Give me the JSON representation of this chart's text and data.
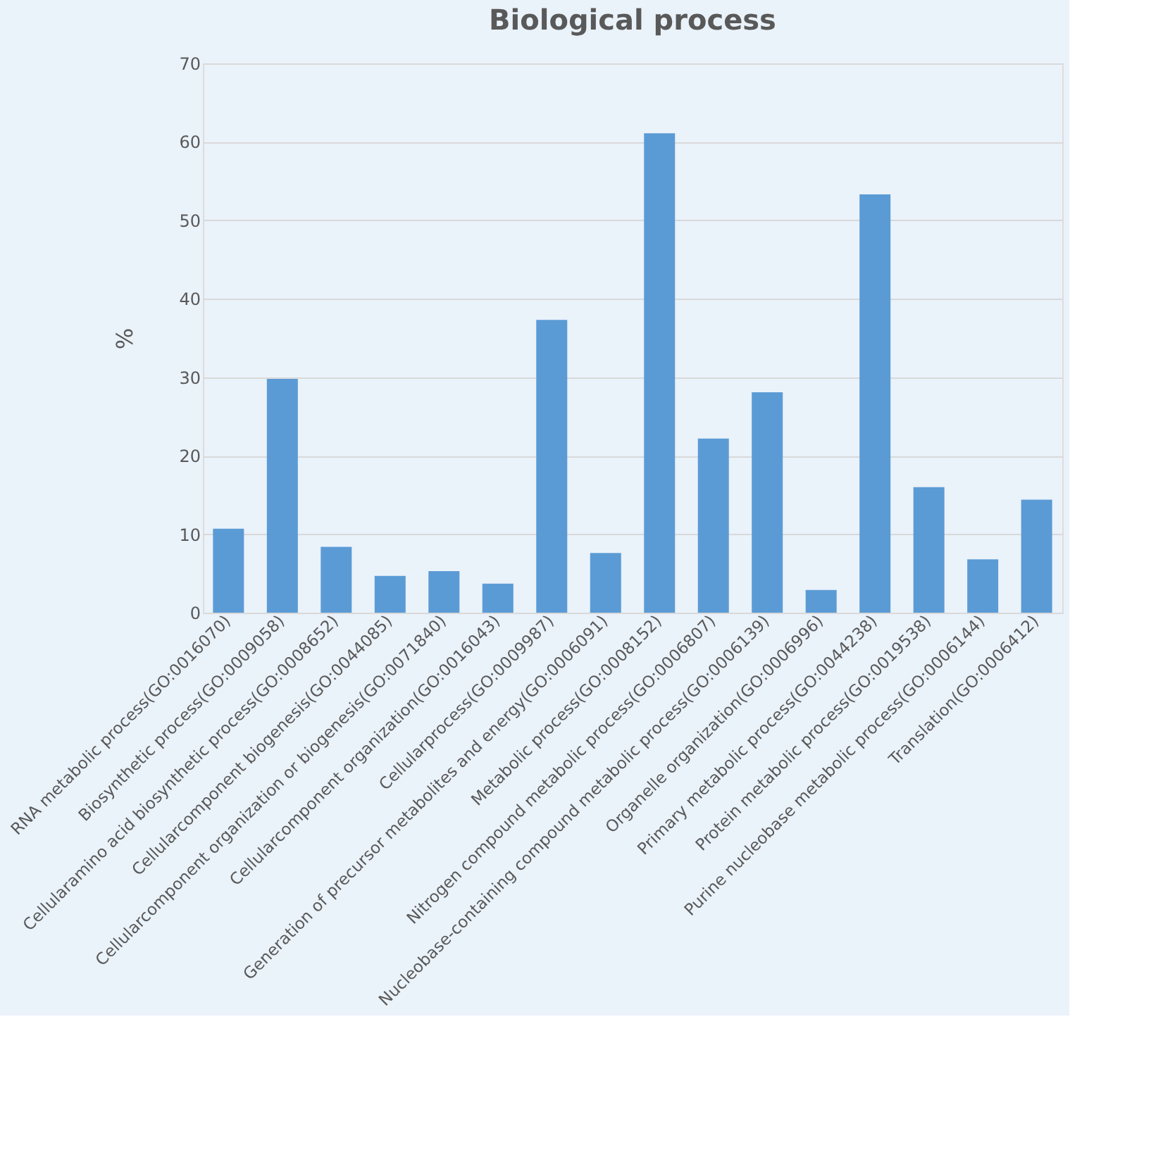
{
  "chart_data": {
    "type": "bar",
    "title": "Biological process",
    "ylabel": "%",
    "categories": [
      "RNA metabolic process(GO:0016070)",
      "Biosynthetic process(GO:0009058)",
      "Cellularamino acid biosynthetic process(GO:0008652)",
      "Cellularcomponent biogenesis(GO:0044085)",
      "Cellularcomponent organization or biogenesis(GO:0071840)",
      "Cellularcomponent organization(GO:0016043)",
      "Cellularprocess(GO:0009987)",
      "Generation of precursor metabolites and energy(GO:0006091)",
      "Metabolic process(GO:0008152)",
      "Nitrogen compound metabolic process(GO:0006807)",
      "Nucleobase-containing compound metabolic process(GO:0006139)",
      "Organelle organization(GO:0006996)",
      "Primary metabolic process(GO:0044238)",
      "Protein metabolic process(GO:0019538)",
      "Purine nucleobase metabolic process(GO:0006144)",
      "Translation(GO:0006412)"
    ],
    "values": [
      10.7,
      29.8,
      8.4,
      4.7,
      5.3,
      3.7,
      37.3,
      7.6,
      61.1,
      22.2,
      28.1,
      2.9,
      53.3,
      16.0,
      6.8,
      14.4
    ],
    "color": "#5b9bd5",
    "ylim": [
      0,
      70
    ],
    "yticks": [
      0,
      10,
      20,
      30,
      40,
      50,
      60,
      70
    ],
    "grid": "y"
  }
}
